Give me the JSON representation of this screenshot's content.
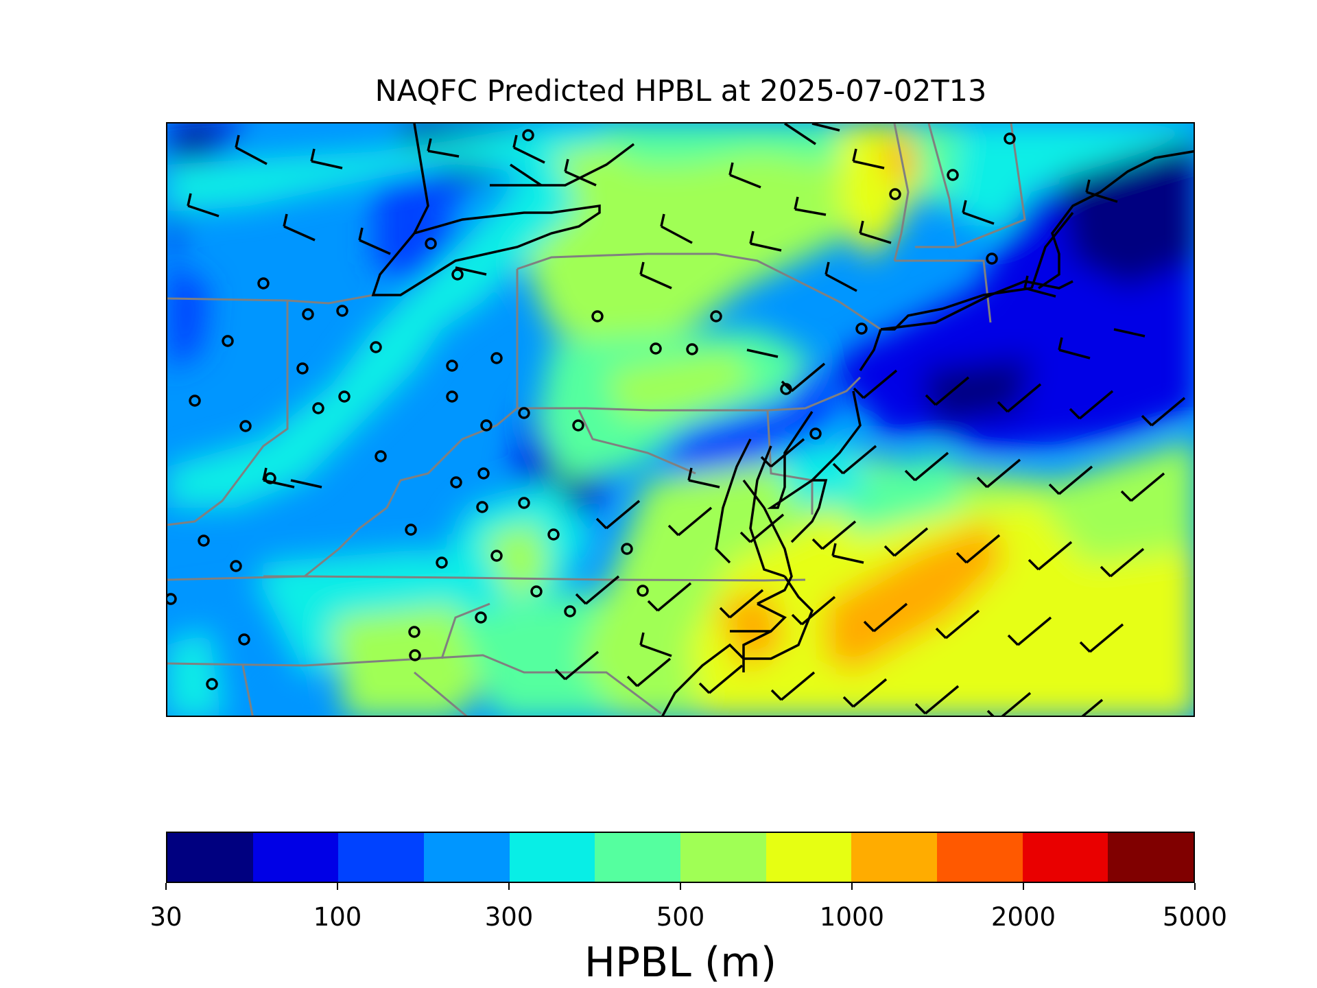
{
  "title": "NAQFC Predicted HPBL at 2025-07-02T13",
  "colorbar": {
    "label": "HPBL (m)",
    "tick_labels": [
      "30",
      "100",
      "300",
      "500",
      "1000",
      "2000",
      "5000"
    ],
    "colors": [
      "#000080",
      "#0000e6",
      "#0042ff",
      "#0096ff",
      "#08eee6",
      "#55ff9f",
      "#a0ff55",
      "#e6ff12",
      "#ffac00",
      "#ff5900",
      "#e90000",
      "#800000"
    ]
  },
  "colors": {
    "coastline": "#000000",
    "state_border": "#808080",
    "wind_barb": "#000000"
  },
  "layers": [
    "HPBL color field",
    "coastlines",
    "state borders",
    "wind barbs",
    "calm-wind circles"
  ]
}
